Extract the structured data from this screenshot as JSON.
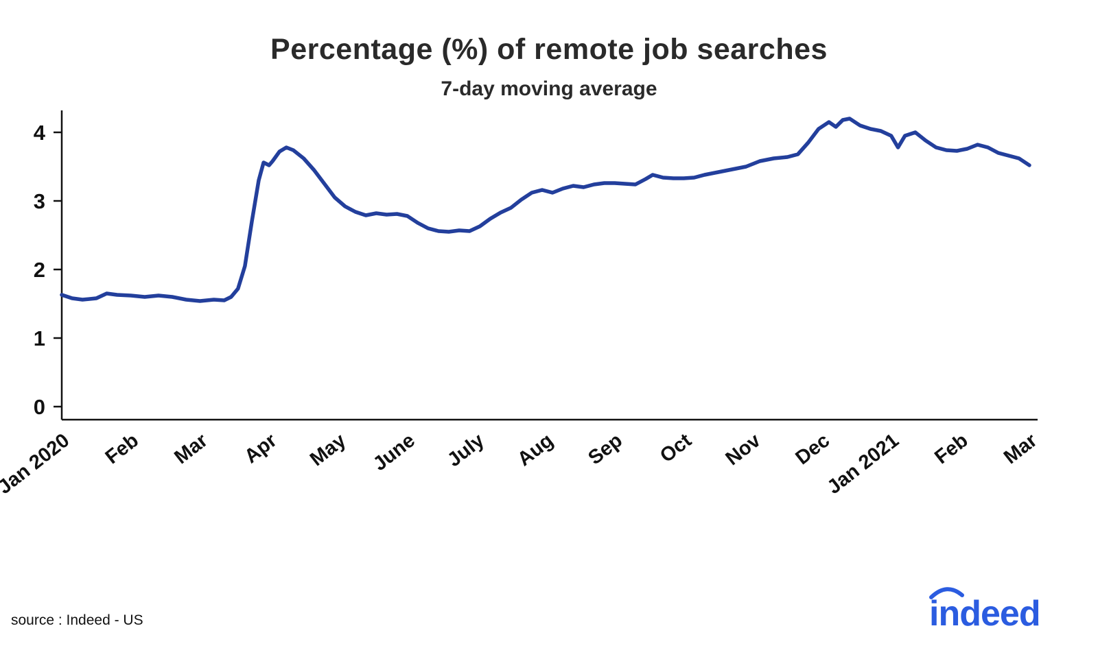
{
  "header": {
    "title": "Percentage (%) of remote job searches",
    "subtitle": "7-day moving average"
  },
  "footer": {
    "source": "source : Indeed - US",
    "logo_text": "indeed"
  },
  "colors": {
    "line": "#233f9c",
    "axis": "#111111",
    "text": "#2a2a2a",
    "logo": "#2b5ce0"
  },
  "chart_data": {
    "type": "line",
    "title": "Percentage (%) of remote job searches",
    "subtitle": "7-day moving average",
    "xlabel": "",
    "ylabel": "",
    "x_unit": "months since Jan 2020",
    "x_tick_labels": [
      "Jan 2020",
      "Feb",
      "Mar",
      "Apr",
      "May",
      "June",
      "July",
      "Aug",
      "Sep",
      "Oct",
      "Nov",
      "Dec",
      "Jan 2021",
      "Feb",
      "Mar"
    ],
    "y_ticks": [
      0,
      1,
      2,
      3,
      4
    ],
    "ylim": [
      0,
      4.4
    ],
    "xlim": [
      0,
      14
    ],
    "grid": false,
    "legend": "none",
    "series": [
      {
        "name": "Remote job searches (%, 7-day moving average)",
        "x": [
          0,
          0.15,
          0.3,
          0.5,
          0.65,
          0.8,
          1.0,
          1.2,
          1.4,
          1.6,
          1.8,
          2.0,
          2.2,
          2.35,
          2.45,
          2.55,
          2.65,
          2.75,
          2.85,
          2.92,
          3.0,
          3.05,
          3.15,
          3.25,
          3.35,
          3.5,
          3.65,
          3.8,
          3.95,
          4.1,
          4.25,
          4.4,
          4.55,
          4.7,
          4.85,
          5.0,
          5.15,
          5.3,
          5.45,
          5.6,
          5.75,
          5.9,
          6.05,
          6.2,
          6.35,
          6.5,
          6.65,
          6.8,
          6.95,
          7.1,
          7.25,
          7.4,
          7.55,
          7.7,
          7.85,
          8.0,
          8.15,
          8.3,
          8.45,
          8.55,
          8.7,
          8.85,
          9.0,
          9.15,
          9.3,
          9.5,
          9.7,
          9.9,
          10.1,
          10.3,
          10.5,
          10.65,
          10.8,
          10.95,
          11.1,
          11.2,
          11.3,
          11.4,
          11.55,
          11.7,
          11.85,
          12.0,
          12.1,
          12.2,
          12.35,
          12.5,
          12.65,
          12.8,
          12.95,
          13.1,
          13.25,
          13.4,
          13.55,
          13.7,
          13.85,
          14.0
        ],
        "y": [
          1.63,
          1.58,
          1.56,
          1.58,
          1.65,
          1.63,
          1.62,
          1.6,
          1.62,
          1.6,
          1.56,
          1.54,
          1.56,
          1.55,
          1.6,
          1.72,
          2.05,
          2.7,
          3.3,
          3.56,
          3.52,
          3.58,
          3.72,
          3.78,
          3.74,
          3.62,
          3.45,
          3.25,
          3.05,
          2.92,
          2.84,
          2.79,
          2.82,
          2.8,
          2.81,
          2.78,
          2.68,
          2.6,
          2.56,
          2.55,
          2.57,
          2.56,
          2.63,
          2.74,
          2.83,
          2.9,
          3.02,
          3.12,
          3.16,
          3.12,
          3.18,
          3.22,
          3.2,
          3.24,
          3.26,
          3.26,
          3.25,
          3.24,
          3.32,
          3.38,
          3.34,
          3.33,
          3.33,
          3.34,
          3.38,
          3.42,
          3.46,
          3.5,
          3.58,
          3.62,
          3.64,
          3.68,
          3.85,
          4.05,
          4.15,
          4.08,
          4.18,
          4.2,
          4.1,
          4.05,
          4.02,
          3.95,
          3.78,
          3.95,
          4.0,
          3.88,
          3.78,
          3.74,
          3.73,
          3.76,
          3.82,
          3.78,
          3.7,
          3.66,
          3.62,
          3.52
        ]
      }
    ]
  }
}
